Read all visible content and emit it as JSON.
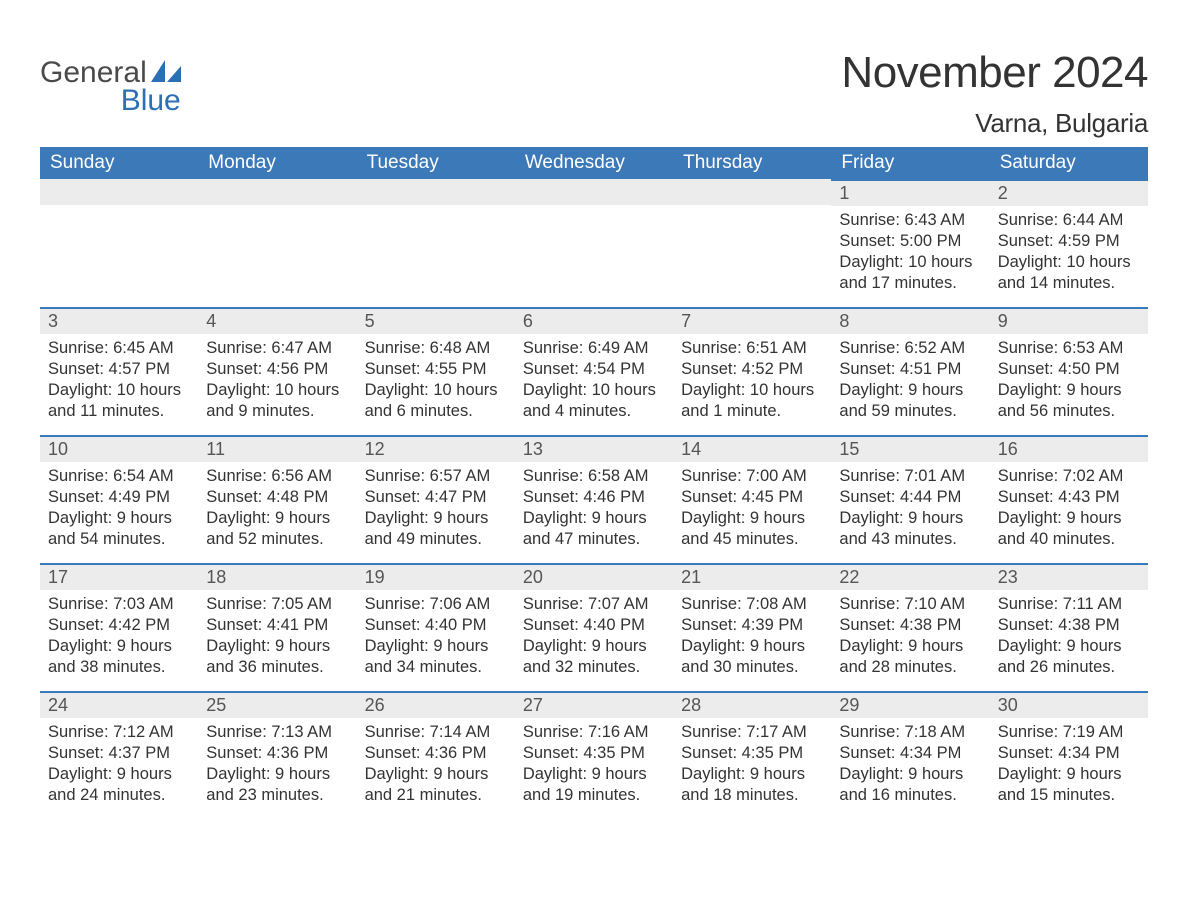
{
  "brand": {
    "word1": "General",
    "word2": "Blue",
    "text1_color": "#4a4a4a",
    "text2_color": "#2c6fb4",
    "sail_color": "#2c6fb4"
  },
  "title": {
    "month_year": "November 2024",
    "location": "Varna, Bulgaria",
    "title_fontsize": 44,
    "location_fontsize": 26,
    "text_color": "#333333"
  },
  "calendar": {
    "header_bg": "#3b79b9",
    "header_text_color": "#ffffff",
    "daynum_bg": "#ececec",
    "daynum_border_color": "#3b79b9",
    "body_text_color": "#333333",
    "columns": [
      "Sunday",
      "Monday",
      "Tuesday",
      "Wednesday",
      "Thursday",
      "Friday",
      "Saturday"
    ],
    "leading_blanks": 5,
    "days": [
      {
        "n": 1,
        "sunrise": "Sunrise: 6:43 AM",
        "sunset": "Sunset: 5:00 PM",
        "daylight": "Daylight: 10 hours and 17 minutes."
      },
      {
        "n": 2,
        "sunrise": "Sunrise: 6:44 AM",
        "sunset": "Sunset: 4:59 PM",
        "daylight": "Daylight: 10 hours and 14 minutes."
      },
      {
        "n": 3,
        "sunrise": "Sunrise: 6:45 AM",
        "sunset": "Sunset: 4:57 PM",
        "daylight": "Daylight: 10 hours and 11 minutes."
      },
      {
        "n": 4,
        "sunrise": "Sunrise: 6:47 AM",
        "sunset": "Sunset: 4:56 PM",
        "daylight": "Daylight: 10 hours and 9 minutes."
      },
      {
        "n": 5,
        "sunrise": "Sunrise: 6:48 AM",
        "sunset": "Sunset: 4:55 PM",
        "daylight": "Daylight: 10 hours and 6 minutes."
      },
      {
        "n": 6,
        "sunrise": "Sunrise: 6:49 AM",
        "sunset": "Sunset: 4:54 PM",
        "daylight": "Daylight: 10 hours and 4 minutes."
      },
      {
        "n": 7,
        "sunrise": "Sunrise: 6:51 AM",
        "sunset": "Sunset: 4:52 PM",
        "daylight": "Daylight: 10 hours and 1 minute."
      },
      {
        "n": 8,
        "sunrise": "Sunrise: 6:52 AM",
        "sunset": "Sunset: 4:51 PM",
        "daylight": "Daylight: 9 hours and 59 minutes."
      },
      {
        "n": 9,
        "sunrise": "Sunrise: 6:53 AM",
        "sunset": "Sunset: 4:50 PM",
        "daylight": "Daylight: 9 hours and 56 minutes."
      },
      {
        "n": 10,
        "sunrise": "Sunrise: 6:54 AM",
        "sunset": "Sunset: 4:49 PM",
        "daylight": "Daylight: 9 hours and 54 minutes."
      },
      {
        "n": 11,
        "sunrise": "Sunrise: 6:56 AM",
        "sunset": "Sunset: 4:48 PM",
        "daylight": "Daylight: 9 hours and 52 minutes."
      },
      {
        "n": 12,
        "sunrise": "Sunrise: 6:57 AM",
        "sunset": "Sunset: 4:47 PM",
        "daylight": "Daylight: 9 hours and 49 minutes."
      },
      {
        "n": 13,
        "sunrise": "Sunrise: 6:58 AM",
        "sunset": "Sunset: 4:46 PM",
        "daylight": "Daylight: 9 hours and 47 minutes."
      },
      {
        "n": 14,
        "sunrise": "Sunrise: 7:00 AM",
        "sunset": "Sunset: 4:45 PM",
        "daylight": "Daylight: 9 hours and 45 minutes."
      },
      {
        "n": 15,
        "sunrise": "Sunrise: 7:01 AM",
        "sunset": "Sunset: 4:44 PM",
        "daylight": "Daylight: 9 hours and 43 minutes."
      },
      {
        "n": 16,
        "sunrise": "Sunrise: 7:02 AM",
        "sunset": "Sunset: 4:43 PM",
        "daylight": "Daylight: 9 hours and 40 minutes."
      },
      {
        "n": 17,
        "sunrise": "Sunrise: 7:03 AM",
        "sunset": "Sunset: 4:42 PM",
        "daylight": "Daylight: 9 hours and 38 minutes."
      },
      {
        "n": 18,
        "sunrise": "Sunrise: 7:05 AM",
        "sunset": "Sunset: 4:41 PM",
        "daylight": "Daylight: 9 hours and 36 minutes."
      },
      {
        "n": 19,
        "sunrise": "Sunrise: 7:06 AM",
        "sunset": "Sunset: 4:40 PM",
        "daylight": "Daylight: 9 hours and 34 minutes."
      },
      {
        "n": 20,
        "sunrise": "Sunrise: 7:07 AM",
        "sunset": "Sunset: 4:40 PM",
        "daylight": "Daylight: 9 hours and 32 minutes."
      },
      {
        "n": 21,
        "sunrise": "Sunrise: 7:08 AM",
        "sunset": "Sunset: 4:39 PM",
        "daylight": "Daylight: 9 hours and 30 minutes."
      },
      {
        "n": 22,
        "sunrise": "Sunrise: 7:10 AM",
        "sunset": "Sunset: 4:38 PM",
        "daylight": "Daylight: 9 hours and 28 minutes."
      },
      {
        "n": 23,
        "sunrise": "Sunrise: 7:11 AM",
        "sunset": "Sunset: 4:38 PM",
        "daylight": "Daylight: 9 hours and 26 minutes."
      },
      {
        "n": 24,
        "sunrise": "Sunrise: 7:12 AM",
        "sunset": "Sunset: 4:37 PM",
        "daylight": "Daylight: 9 hours and 24 minutes."
      },
      {
        "n": 25,
        "sunrise": "Sunrise: 7:13 AM",
        "sunset": "Sunset: 4:36 PM",
        "daylight": "Daylight: 9 hours and 23 minutes."
      },
      {
        "n": 26,
        "sunrise": "Sunrise: 7:14 AM",
        "sunset": "Sunset: 4:36 PM",
        "daylight": "Daylight: 9 hours and 21 minutes."
      },
      {
        "n": 27,
        "sunrise": "Sunrise: 7:16 AM",
        "sunset": "Sunset: 4:35 PM",
        "daylight": "Daylight: 9 hours and 19 minutes."
      },
      {
        "n": 28,
        "sunrise": "Sunrise: 7:17 AM",
        "sunset": "Sunset: 4:35 PM",
        "daylight": "Daylight: 9 hours and 18 minutes."
      },
      {
        "n": 29,
        "sunrise": "Sunrise: 7:18 AM",
        "sunset": "Sunset: 4:34 PM",
        "daylight": "Daylight: 9 hours and 16 minutes."
      },
      {
        "n": 30,
        "sunrise": "Sunrise: 7:19 AM",
        "sunset": "Sunset: 4:34 PM",
        "daylight": "Daylight: 9 hours and 15 minutes."
      }
    ]
  }
}
